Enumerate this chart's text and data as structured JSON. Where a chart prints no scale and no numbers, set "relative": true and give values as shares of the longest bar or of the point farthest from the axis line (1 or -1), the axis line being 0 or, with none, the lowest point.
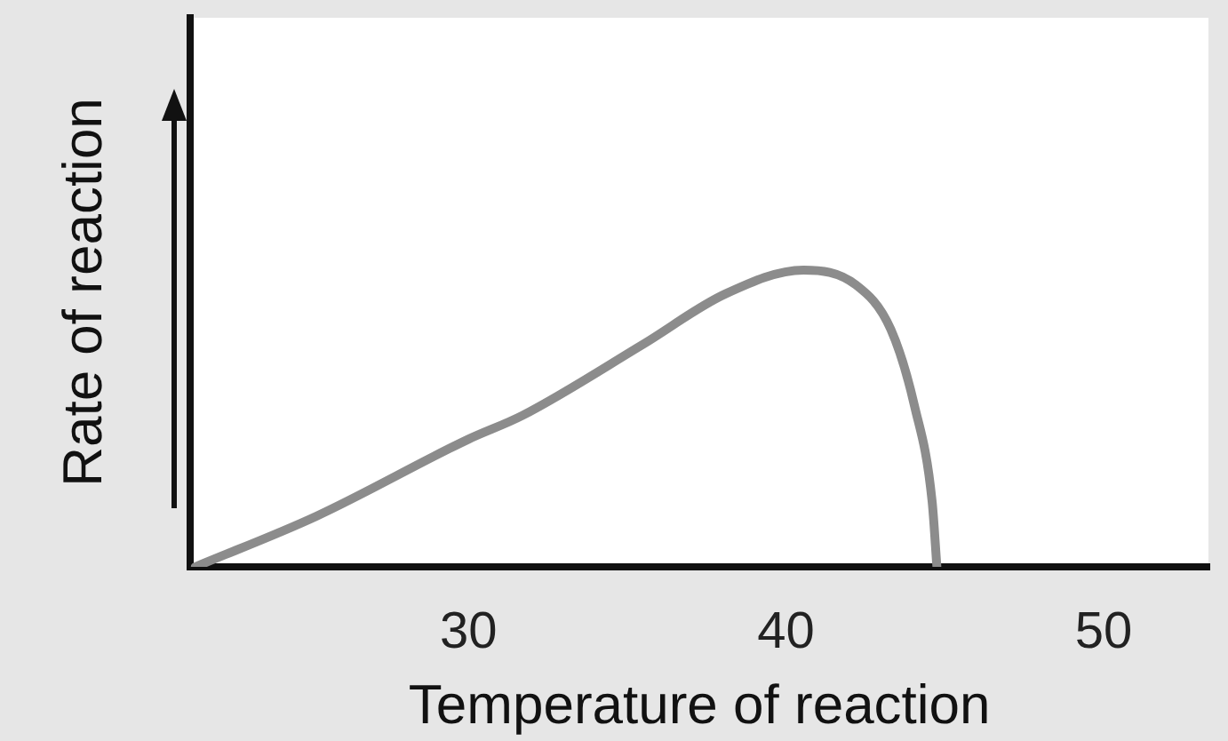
{
  "chart_data": {
    "type": "line",
    "xlabel": "Temperature of reaction",
    "ylabel": "Rate of reaction",
    "relative": true,
    "xlim": [
      21.25,
      53.3
    ],
    "xticks": [
      30,
      40,
      50
    ],
    "grid": false,
    "legend": false,
    "marker": "none",
    "line_style": "solid",
    "series": [
      {
        "color": "#8c8c8c",
        "x": [
          21.4,
          25.2,
          30,
          31.7,
          35.5,
          38.1,
          40.55,
          42.2,
          43.3,
          44.05,
          44.6,
          44.75
        ],
        "values": [
          0,
          0.17,
          0.43,
          0.51,
          0.75,
          0.92,
          1,
          0.95,
          0.8,
          0.54,
          0.22,
          0
        ]
      }
    ]
  }
}
